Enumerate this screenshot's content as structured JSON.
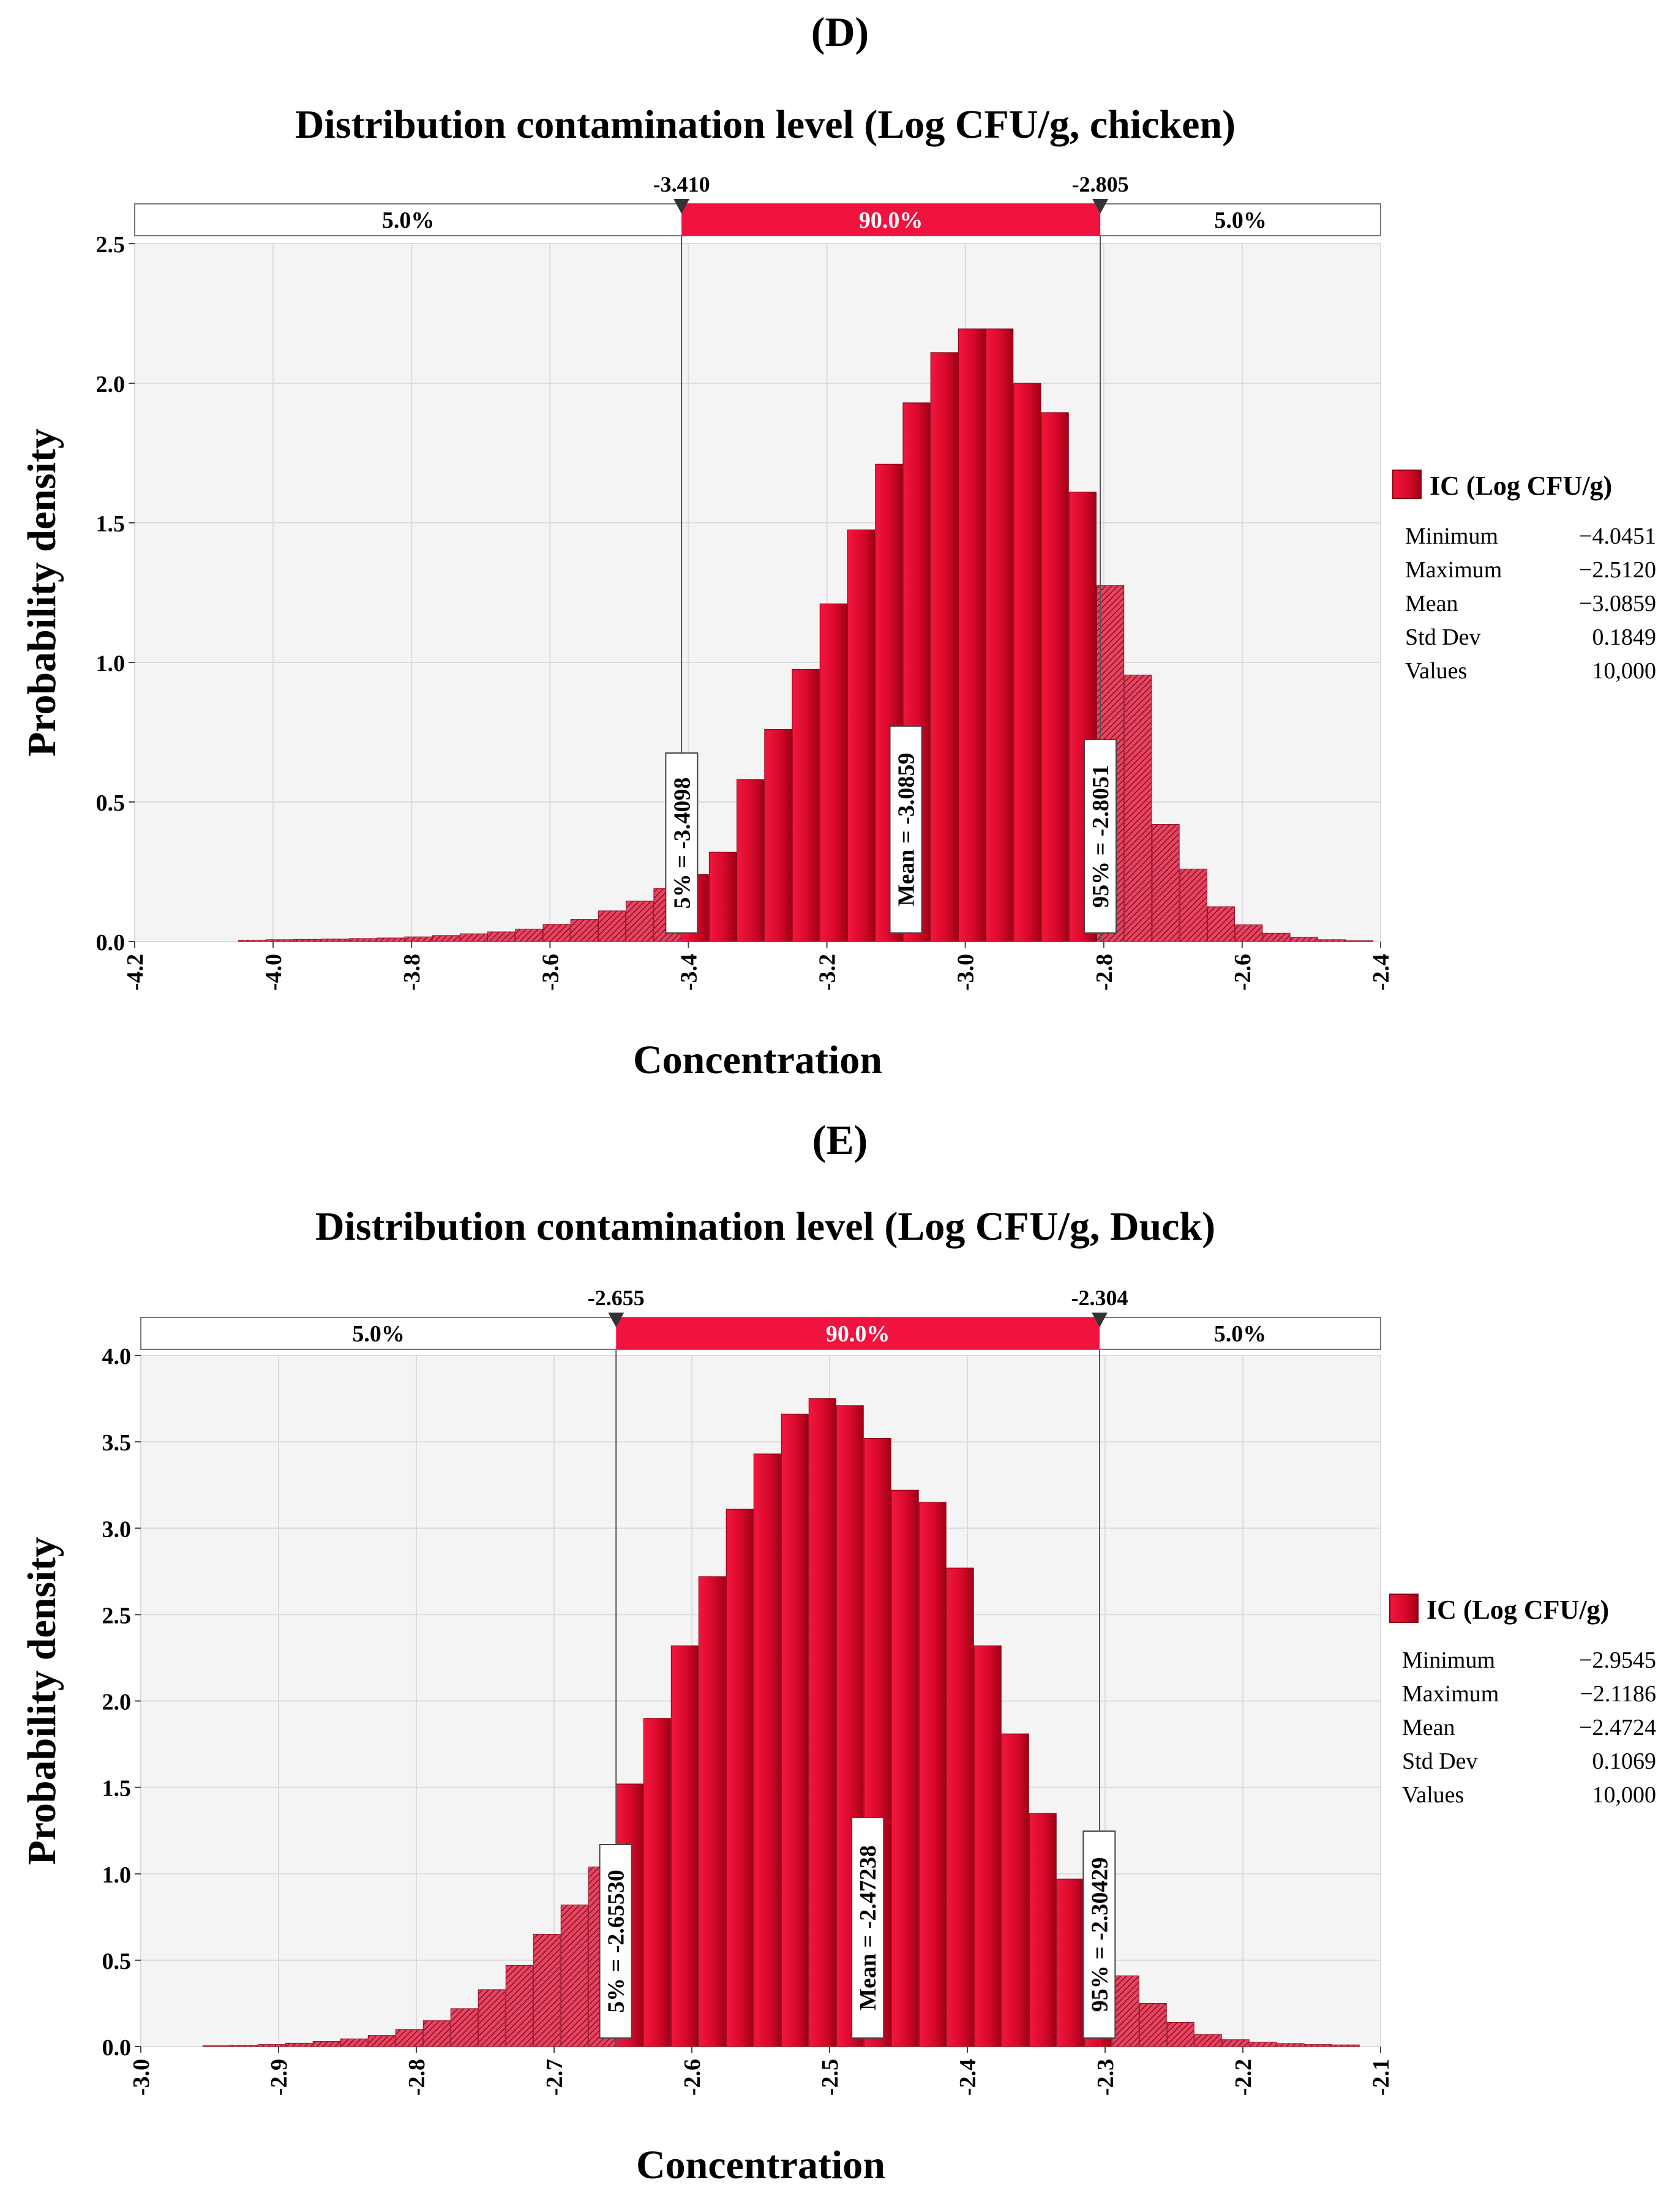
{
  "chart_data": [
    {
      "type": "bar",
      "panel_label": "(D)",
      "title": "Distribution contamination level (Log CFU/g, chicken)",
      "xlabel": "Concentration",
      "ylabel": "Probability density",
      "xlim": [
        -4.2,
        -2.4
      ],
      "ylim": [
        0,
        2.5
      ],
      "xticks": [
        "-4.2",
        "-4.0",
        "-3.8",
        "-3.6",
        "-3.4",
        "-3.2",
        "-3.0",
        "-2.8",
        "-2.6",
        "-2.4"
      ],
      "yticks": [
        "0.0",
        "0.5",
        "1.0",
        "1.5",
        "2.0",
        "2.5"
      ],
      "bin_start": -4.05,
      "bin_width": 0.04,
      "values": [
        0.005,
        0.007,
        0.008,
        0.009,
        0.011,
        0.013,
        0.017,
        0.022,
        0.028,
        0.035,
        0.045,
        0.062,
        0.08,
        0.11,
        0.145,
        0.19,
        0.24,
        0.32,
        0.58,
        0.76,
        0.975,
        1.21,
        1.475,
        1.71,
        1.93,
        2.11,
        2.195,
        2.195,
        2.0,
        1.895,
        1.61,
        1.275,
        0.955,
        0.42,
        0.26,
        0.125,
        0.06,
        0.03,
        0.015,
        0.007,
        0.003
      ],
      "colors": {
        "inside": "#d0021b",
        "outside": "#c4223a",
        "band": "#f0133f",
        "plot_bg": "#f4f4f4"
      },
      "percentile_band": {
        "left_value": -3.41,
        "right_value": -2.805,
        "left_label": "-3.410",
        "right_label": "-2.805",
        "left_pct": "5.0%",
        "mid_pct": "90.0%",
        "right_pct": "5.0%"
      },
      "markers": [
        {
          "x": -3.4098,
          "label": "5% = -3.4098"
        },
        {
          "x": -3.0859,
          "label": "Mean = -3.0859"
        },
        {
          "x": -2.8051,
          "label": "95% = -2.8051"
        }
      ],
      "legend": {
        "title": "IC (Log CFU/g)",
        "rows": [
          {
            "label": "Minimum",
            "value": "−4.0451"
          },
          {
            "label": "Maximum",
            "value": "−2.5120"
          },
          {
            "label": "Mean",
            "value": "−3.0859"
          },
          {
            "label": "Std Dev",
            "value": "0.1849"
          },
          {
            "label": "Values",
            "value": "10,000"
          }
        ]
      }
    },
    {
      "type": "bar",
      "panel_label": "(E)",
      "title": "Distribution contamination level (Log CFU/g, Duck)",
      "xlabel": "Concentration",
      "ylabel": "Probability density",
      "xlim": [
        -3.0,
        -2.1
      ],
      "ylim": [
        0,
        4.0
      ],
      "xticks": [
        "-3.0",
        "-2.9",
        "-2.8",
        "-2.7",
        "-2.6",
        "-2.5",
        "-2.4",
        "-2.3",
        "-2.2",
        "-2.1"
      ],
      "yticks": [
        "0.0",
        "0.5",
        "1.0",
        "1.5",
        "2.0",
        "2.5",
        "3.0",
        "3.5",
        "4.0"
      ],
      "bin_start": -2.955,
      "bin_width": 0.02,
      "values": [
        0.005,
        0.008,
        0.012,
        0.02,
        0.03,
        0.045,
        0.065,
        0.1,
        0.15,
        0.22,
        0.33,
        0.47,
        0.65,
        0.82,
        1.04,
        1.52,
        1.9,
        2.32,
        2.72,
        3.11,
        3.43,
        3.66,
        3.75,
        3.71,
        3.52,
        3.22,
        3.15,
        2.77,
        2.32,
        1.81,
        1.35,
        0.97,
        0.64,
        0.41,
        0.25,
        0.14,
        0.07,
        0.04,
        0.025,
        0.018,
        0.012,
        0.01
      ],
      "colors": {
        "inside": "#d0021b",
        "outside": "#c4223a",
        "band": "#f0133f",
        "plot_bg": "#f4f4f4"
      },
      "percentile_band": {
        "left_value": -2.655,
        "right_value": -2.304,
        "left_label": "-2.655",
        "right_label": "-2.304",
        "left_pct": "5.0%",
        "mid_pct": "90.0%",
        "right_pct": "5.0%"
      },
      "markers": [
        {
          "x": -2.6553,
          "label": "5% = -2.65530"
        },
        {
          "x": -2.47238,
          "label": "Mean = -2.47238"
        },
        {
          "x": -2.30429,
          "label": "95% = -2.30429"
        }
      ],
      "legend": {
        "title": "IC (Log CFU/g)",
        "rows": [
          {
            "label": "Minimum",
            "value": "−2.9545"
          },
          {
            "label": "Maximum",
            "value": "−2.1186"
          },
          {
            "label": "Mean",
            "value": "−2.4724"
          },
          {
            "label": "Std Dev",
            "value": "0.1069"
          },
          {
            "label": "Values",
            "value": "10,000"
          }
        ]
      }
    }
  ]
}
